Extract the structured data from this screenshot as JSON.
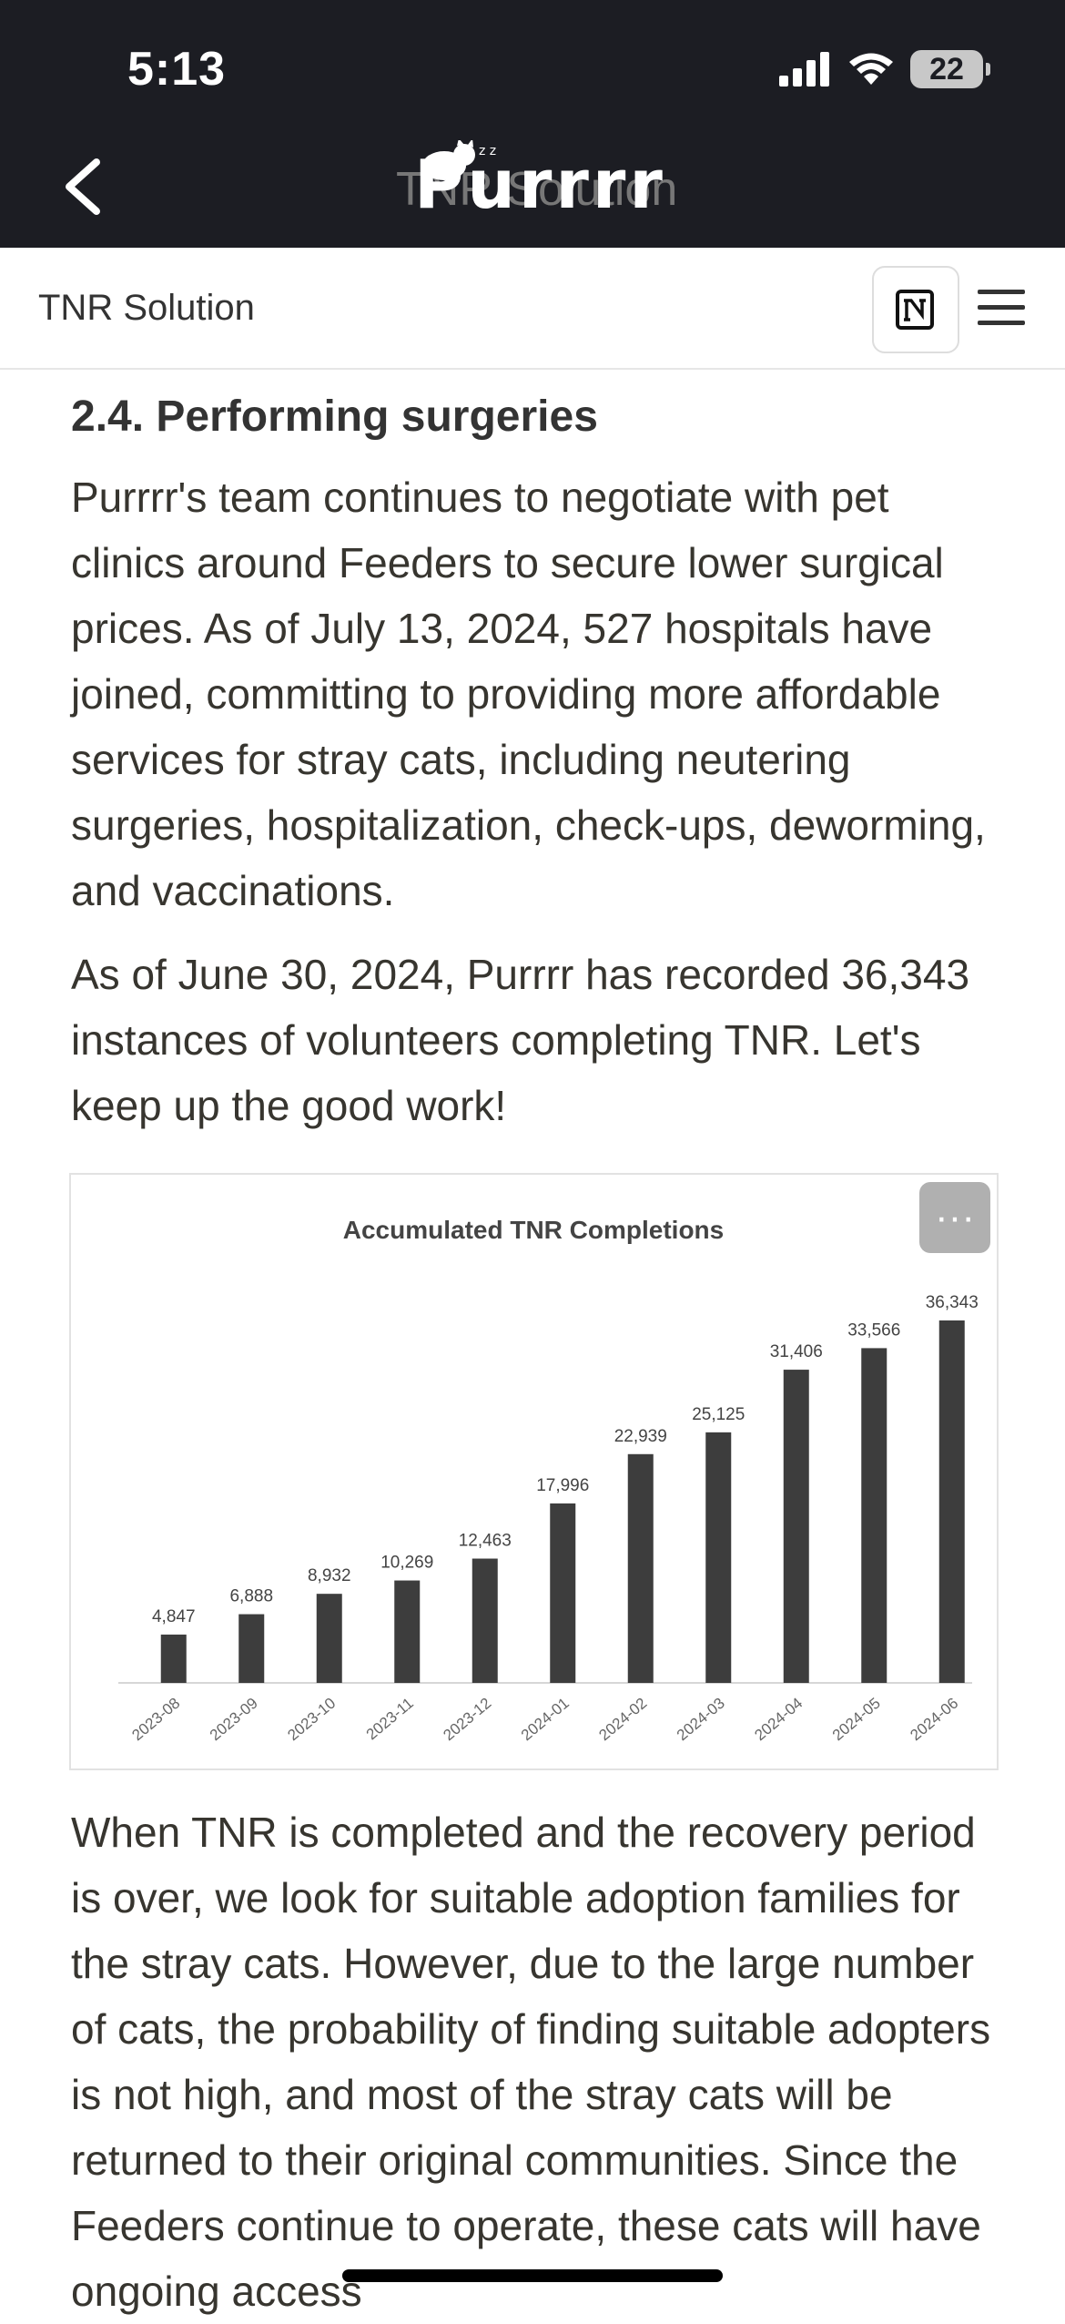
{
  "status_bar": {
    "time": "5:13",
    "battery": "22"
  },
  "app_header": {
    "logo_text": "Purrrr",
    "ghost_title": "TNR Solution"
  },
  "page_bar": {
    "title": "TNR Solution"
  },
  "article": {
    "heading": "2.4. Performing surgeries",
    "paragraph_1": "Purrrr's team continues to negotiate with pet clinics around Feeders to secure lower surgical prices. As of July 13, 2024, 527 hospitals have joined, committing to providing more affordable services for stray cats, including neutering surgeries, hospitalization, check-ups, deworming, and vaccinations.",
    "paragraph_2": "As of June 30, 2024, Purrrr has recorded 36,343 instances of volunteers completing TNR. Let's keep up the good work!",
    "paragraph_3": "When TNR is completed and the recovery period is over, we look for suitable adoption families for the stray cats. However, due to the large number of cats, the probability of finding suitable adopters is not high, and most of the stray cats will be returned to their original communities. Since the Feeders continue to operate, these cats will have ongoing access"
  },
  "chart_more_label": "···",
  "colors": {
    "header_bg": "#1c1d23",
    "bar": "#3d3d3d",
    "text": "#37352f"
  },
  "chart_data": {
    "type": "bar",
    "title": "Accumulated TNR Completions",
    "categories": [
      "2023-08",
      "2023-09",
      "2023-10",
      "2023-11",
      "2023-12",
      "2024-01",
      "2024-02",
      "2024-03",
      "2024-04",
      "2024-05",
      "2024-06"
    ],
    "values": [
      4847,
      6888,
      8932,
      10269,
      12463,
      17996,
      22939,
      25125,
      31406,
      33566,
      36343
    ],
    "value_labels": [
      "4,847",
      "6,888",
      "8,932",
      "10,269",
      "12,463",
      "17,996",
      "22,939",
      "25,125",
      "31,406",
      "33,566",
      "36,343"
    ],
    "ylim": [
      0,
      36343
    ],
    "grid": false,
    "legend": "none"
  }
}
